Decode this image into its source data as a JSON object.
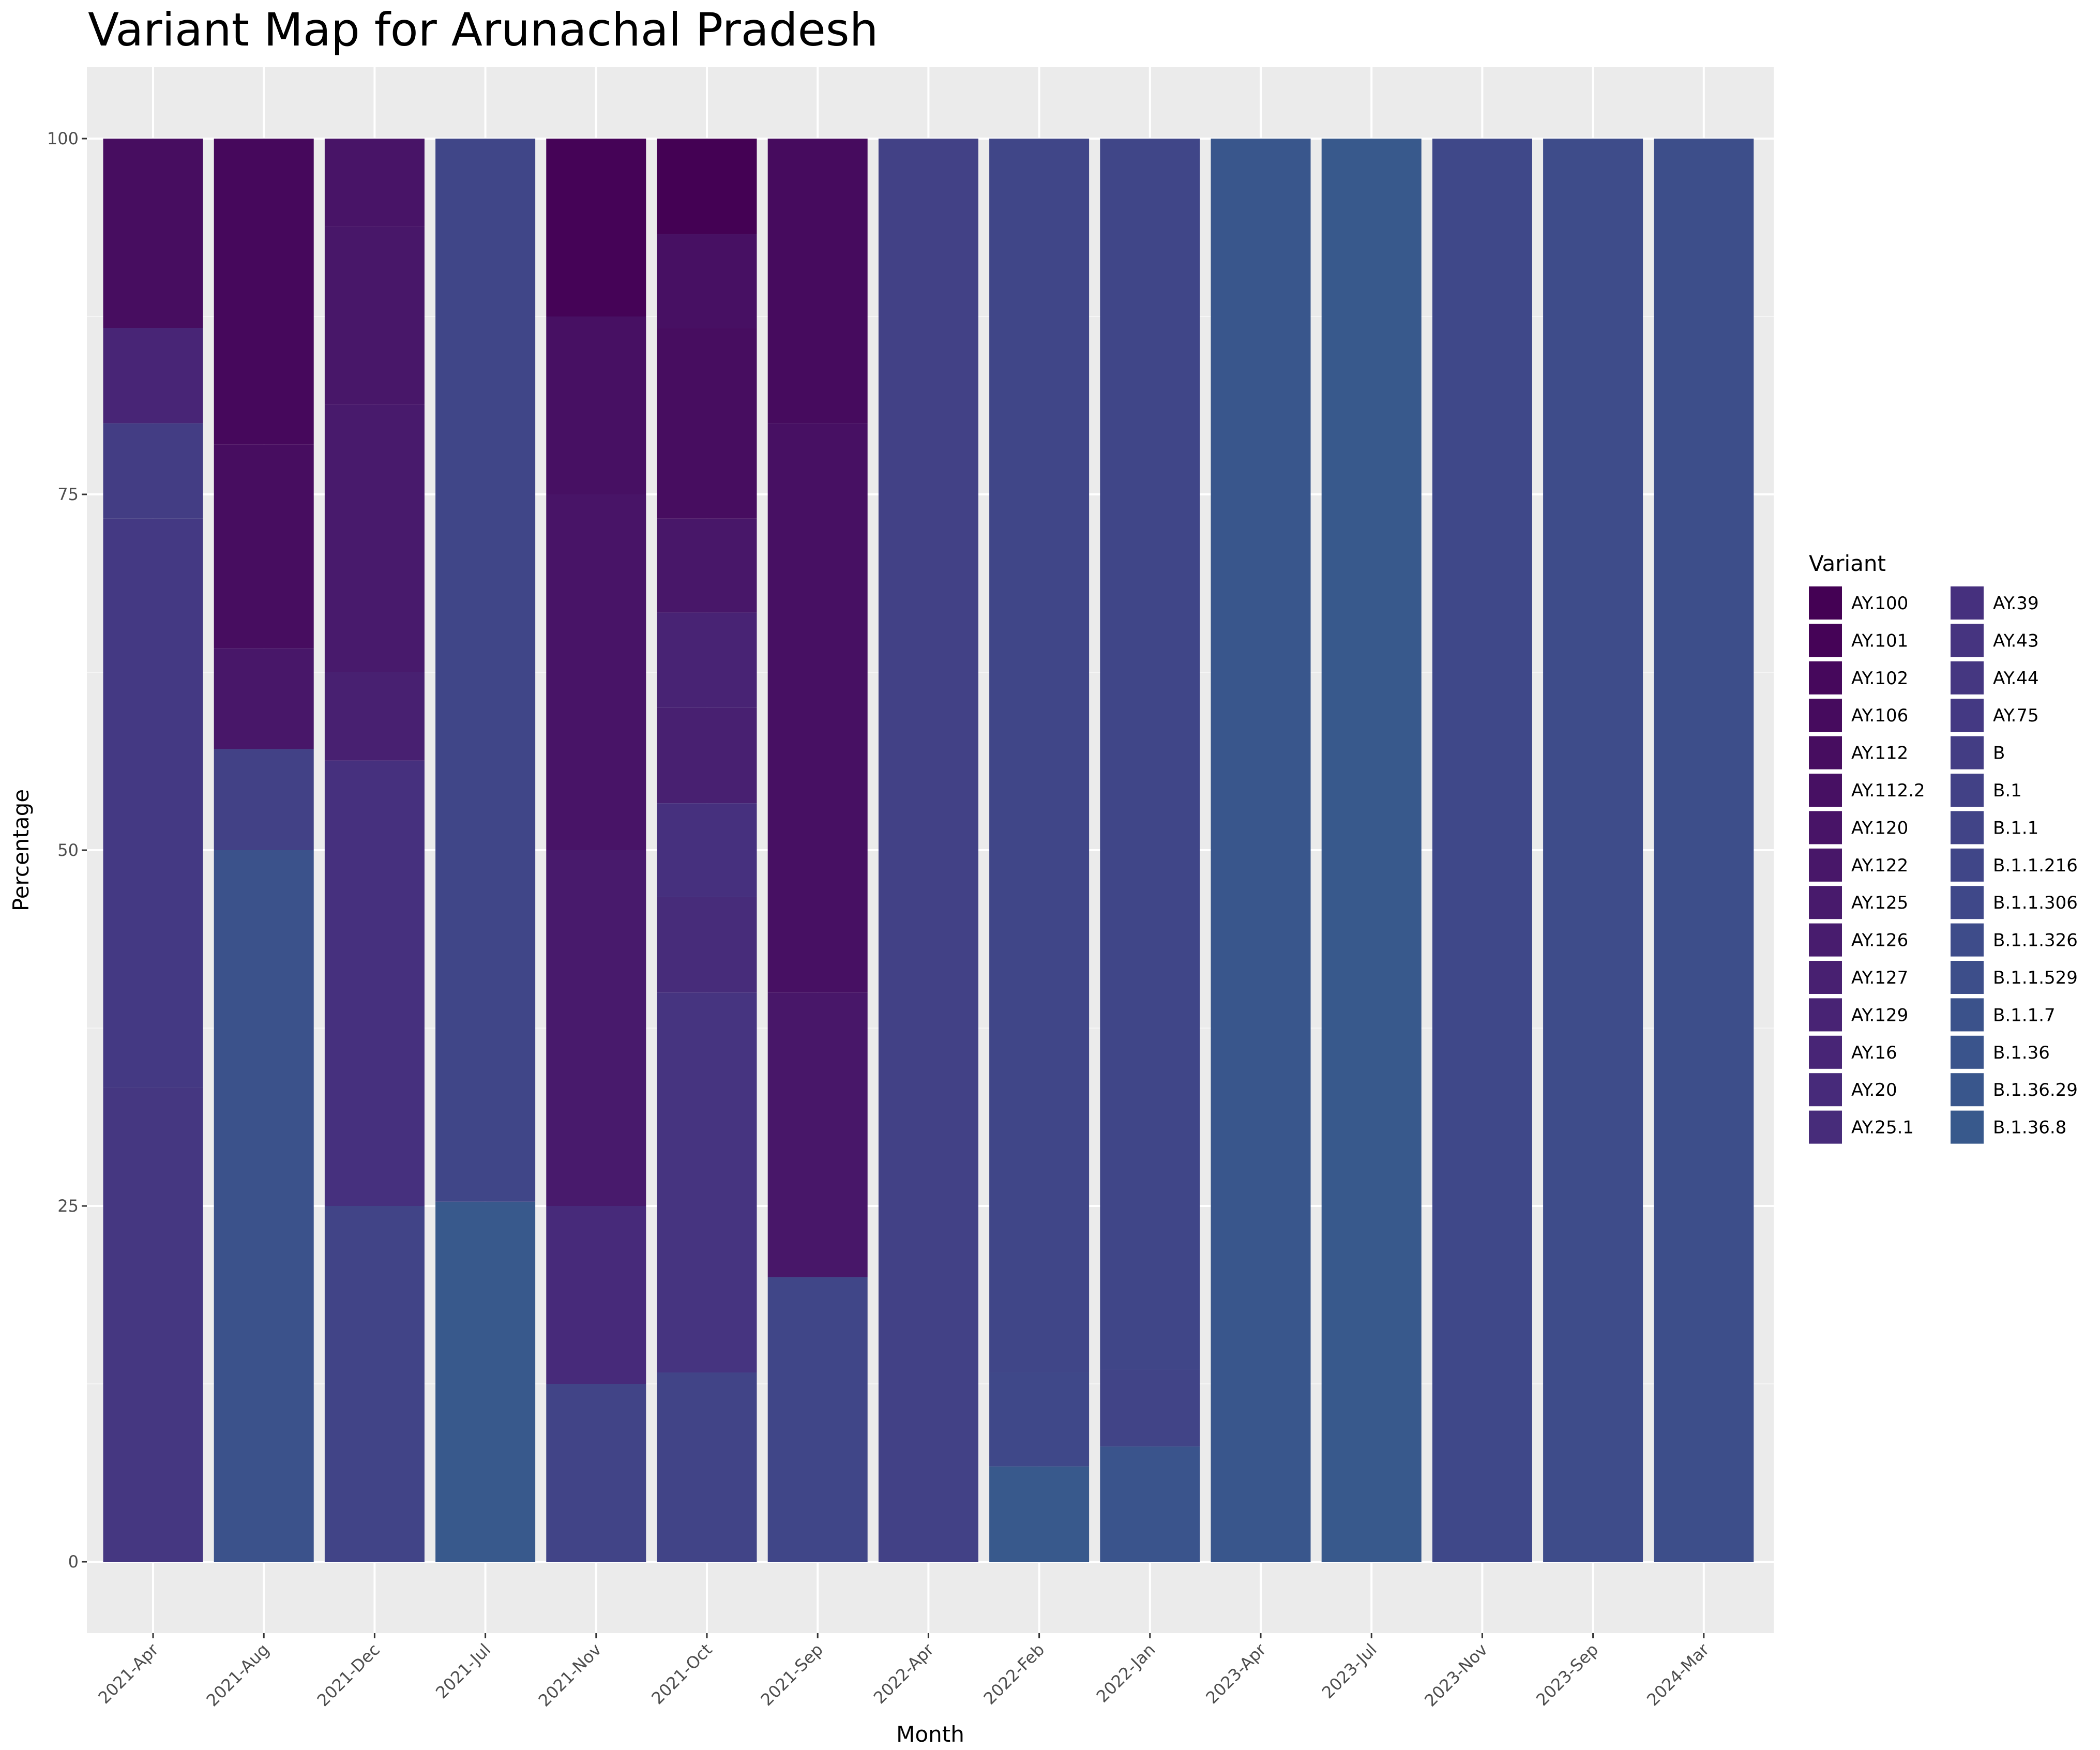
{
  "chart_data": {
    "type": "bar",
    "stacked": true,
    "title": "Variant Map for Arunachal Pradesh",
    "xlabel": "Month",
    "ylabel": "Percentage",
    "ylim": [
      -5,
      105
    ],
    "y_ticks": [
      0,
      25,
      50,
      75,
      100
    ],
    "grid": true,
    "legend_title": "Variant",
    "legend_position": "right",
    "categories": [
      "2021-Apr",
      "2021-Aug",
      "2021-Dec",
      "2021-Jul",
      "2021-Nov",
      "2021-Oct",
      "2021-Sep",
      "2022-Apr",
      "2022-Feb",
      "2022-Jan",
      "2023-Apr",
      "2023-Jul",
      "2023-Nov",
      "2023-Sep",
      "2024-Mar"
    ],
    "variants": [
      {
        "name": "AY.100",
        "color": "#440154"
      },
      {
        "name": "AY.101",
        "color": "#450357"
      },
      {
        "name": "AY.102",
        "color": "#46085c"
      },
      {
        "name": "AY.106",
        "color": "#460b5e"
      },
      {
        "name": "AY.112",
        "color": "#470d60"
      },
      {
        "name": "AY.112.2",
        "color": "#471063"
      },
      {
        "name": "AY.120",
        "color": "#481467"
      },
      {
        "name": "AY.122",
        "color": "#481769"
      },
      {
        "name": "AY.125",
        "color": "#481a6c"
      },
      {
        "name": "AY.126",
        "color": "#481c6e"
      },
      {
        "name": "AY.127",
        "color": "#482071"
      },
      {
        "name": "AY.129",
        "color": "#482374"
      },
      {
        "name": "AY.16",
        "color": "#482576"
      },
      {
        "name": "AY.20",
        "color": "#472a7a"
      },
      {
        "name": "AY.25.1",
        "color": "#472c7a"
      },
      {
        "name": "AY.39",
        "color": "#46307e"
      },
      {
        "name": "AY.43",
        "color": "#463480"
      },
      {
        "name": "AY.44",
        "color": "#453781"
      },
      {
        "name": "AY.75",
        "color": "#443983"
      },
      {
        "name": "B",
        "color": "#433d84"
      },
      {
        "name": "B.1",
        "color": "#424186"
      },
      {
        "name": "B.1.1",
        "color": "#414487"
      },
      {
        "name": "B.1.1.216",
        "color": "#404688"
      },
      {
        "name": "B.1.1.306",
        "color": "#3f4889"
      },
      {
        "name": "B.1.1.326",
        "color": "#3e4c8a"
      },
      {
        "name": "B.1.1.529",
        "color": "#3d4e8a"
      },
      {
        "name": "B.1.1.7",
        "color": "#3b528b"
      },
      {
        "name": "B.1.36",
        "color": "#3a548c"
      },
      {
        "name": "B.1.36.29",
        "color": "#39568c"
      },
      {
        "name": "B.1.36.8",
        "color": "#38598c"
      }
    ],
    "stacks": [
      [
        [
          "AY.44",
          33.3
        ],
        [
          "AY.75",
          40
        ],
        [
          "B",
          6.7
        ],
        [
          "AY.16",
          6.7
        ],
        [
          "AY.112",
          13.3
        ]
      ],
      [
        [
          "B.1.1.7",
          50
        ],
        [
          "B.1",
          7.1
        ],
        [
          "AY.122",
          7.1
        ],
        [
          "AY.112",
          14.3
        ],
        [
          "AY.102",
          21.5
        ]
      ],
      [
        [
          "B.1.1",
          25
        ],
        [
          "AY.39",
          31.3
        ],
        [
          "AY.127",
          6.2
        ],
        [
          "AY.125",
          18.8
        ],
        [
          "AY.122",
          12.5
        ],
        [
          "AY.120",
          6.2
        ]
      ],
      [
        [
          "B.1.36.8",
          25.3
        ],
        [
          "B.1.1.216",
          74.7
        ]
      ],
      [
        [
          "B.1.1",
          12.5
        ],
        [
          "AY.20",
          12.5
        ],
        [
          "AY.125",
          25
        ],
        [
          "AY.120",
          25
        ],
        [
          "AY.112.2",
          12.5
        ],
        [
          "AY.101",
          12.5
        ]
      ],
      [
        [
          "B.1.1",
          13.3
        ],
        [
          "AY.43",
          26.7
        ],
        [
          "AY.25.1",
          6.7
        ],
        [
          "AY.39",
          6.6
        ],
        [
          "AY.127",
          6.7
        ],
        [
          "AY.129",
          6.7
        ],
        [
          "AY.122",
          6.6
        ],
        [
          "AY.112",
          13.4
        ],
        [
          "AY.112.2",
          6.6
        ],
        [
          "AY.100",
          6.7
        ]
      ],
      [
        [
          "B.1.1.216",
          20
        ],
        [
          "AY.122",
          20
        ],
        [
          "AY.112.2",
          40
        ],
        [
          "AY.106",
          20
        ]
      ],
      [
        [
          "B.1",
          100
        ]
      ],
      [
        [
          "B.1.36.8",
          6.7
        ],
        [
          "B.1.1.306",
          6.6
        ],
        [
          "B.1.1.216",
          86.7
        ]
      ],
      [
        [
          "B.1.36",
          8.1
        ],
        [
          "B.1.1",
          5.4
        ],
        [
          "B.1.1.216",
          86.5
        ]
      ],
      [
        [
          "B.1.36.29",
          100
        ]
      ],
      [
        [
          "B.1.36.8",
          100
        ]
      ],
      [
        [
          "B.1.1.306",
          100
        ]
      ],
      [
        [
          "B.1.1.326",
          100
        ]
      ],
      [
        [
          "B.1.1.529",
          100
        ]
      ]
    ]
  }
}
